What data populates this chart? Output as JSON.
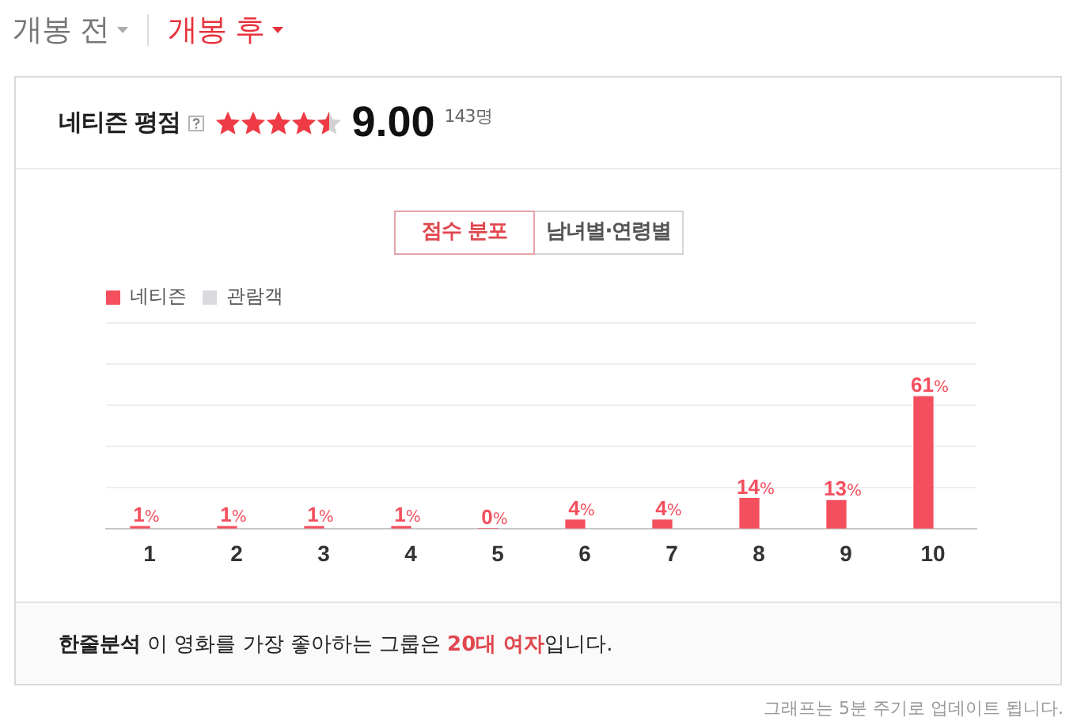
{
  "chart_data": {
    "type": "bar",
    "title": "네티즌 평점",
    "categories": [
      "1",
      "2",
      "3",
      "4",
      "5",
      "6",
      "7",
      "8",
      "9",
      "10"
    ],
    "series": [
      {
        "name": "네티즌",
        "color": "#f44f5e",
        "values": [
          1,
          1,
          1,
          1,
          0,
          4,
          4,
          14,
          13,
          61
        ],
        "value_labels": [
          "1%",
          "1%",
          "1%",
          "1%",
          "0%",
          "4%",
          "4%",
          "14%",
          "13%",
          "61%"
        ]
      },
      {
        "name": "관람객",
        "color": "#d9d9de",
        "values": [
          null,
          null,
          null,
          null,
          null,
          null,
          null,
          null,
          null,
          null
        ]
      }
    ],
    "ylim": [
      0,
      95
    ],
    "yticks": [
      {
        "value": 0,
        "label": null
      },
      {
        "value": 19,
        "label": null
      },
      {
        "value": 38,
        "label": null
      },
      {
        "value": 57,
        "label": null
      },
      {
        "value": 76,
        "label": null
      },
      {
        "value": 95,
        "label": null
      }
    ],
    "tick_labels": "x",
    "grid": "y",
    "legend": "top left",
    "annotations": [
      "개봉 전",
      "개봉 후",
      "9.00",
      "143명",
      "점수 분포",
      "남녀별·연령별",
      "한줄분석",
      "이 영화를 가장 좋아하는 그룹은",
      "20대 여자",
      "입니다.",
      "그래프는 5분 주기로 업데이트 됩니다."
    ]
  }
}
